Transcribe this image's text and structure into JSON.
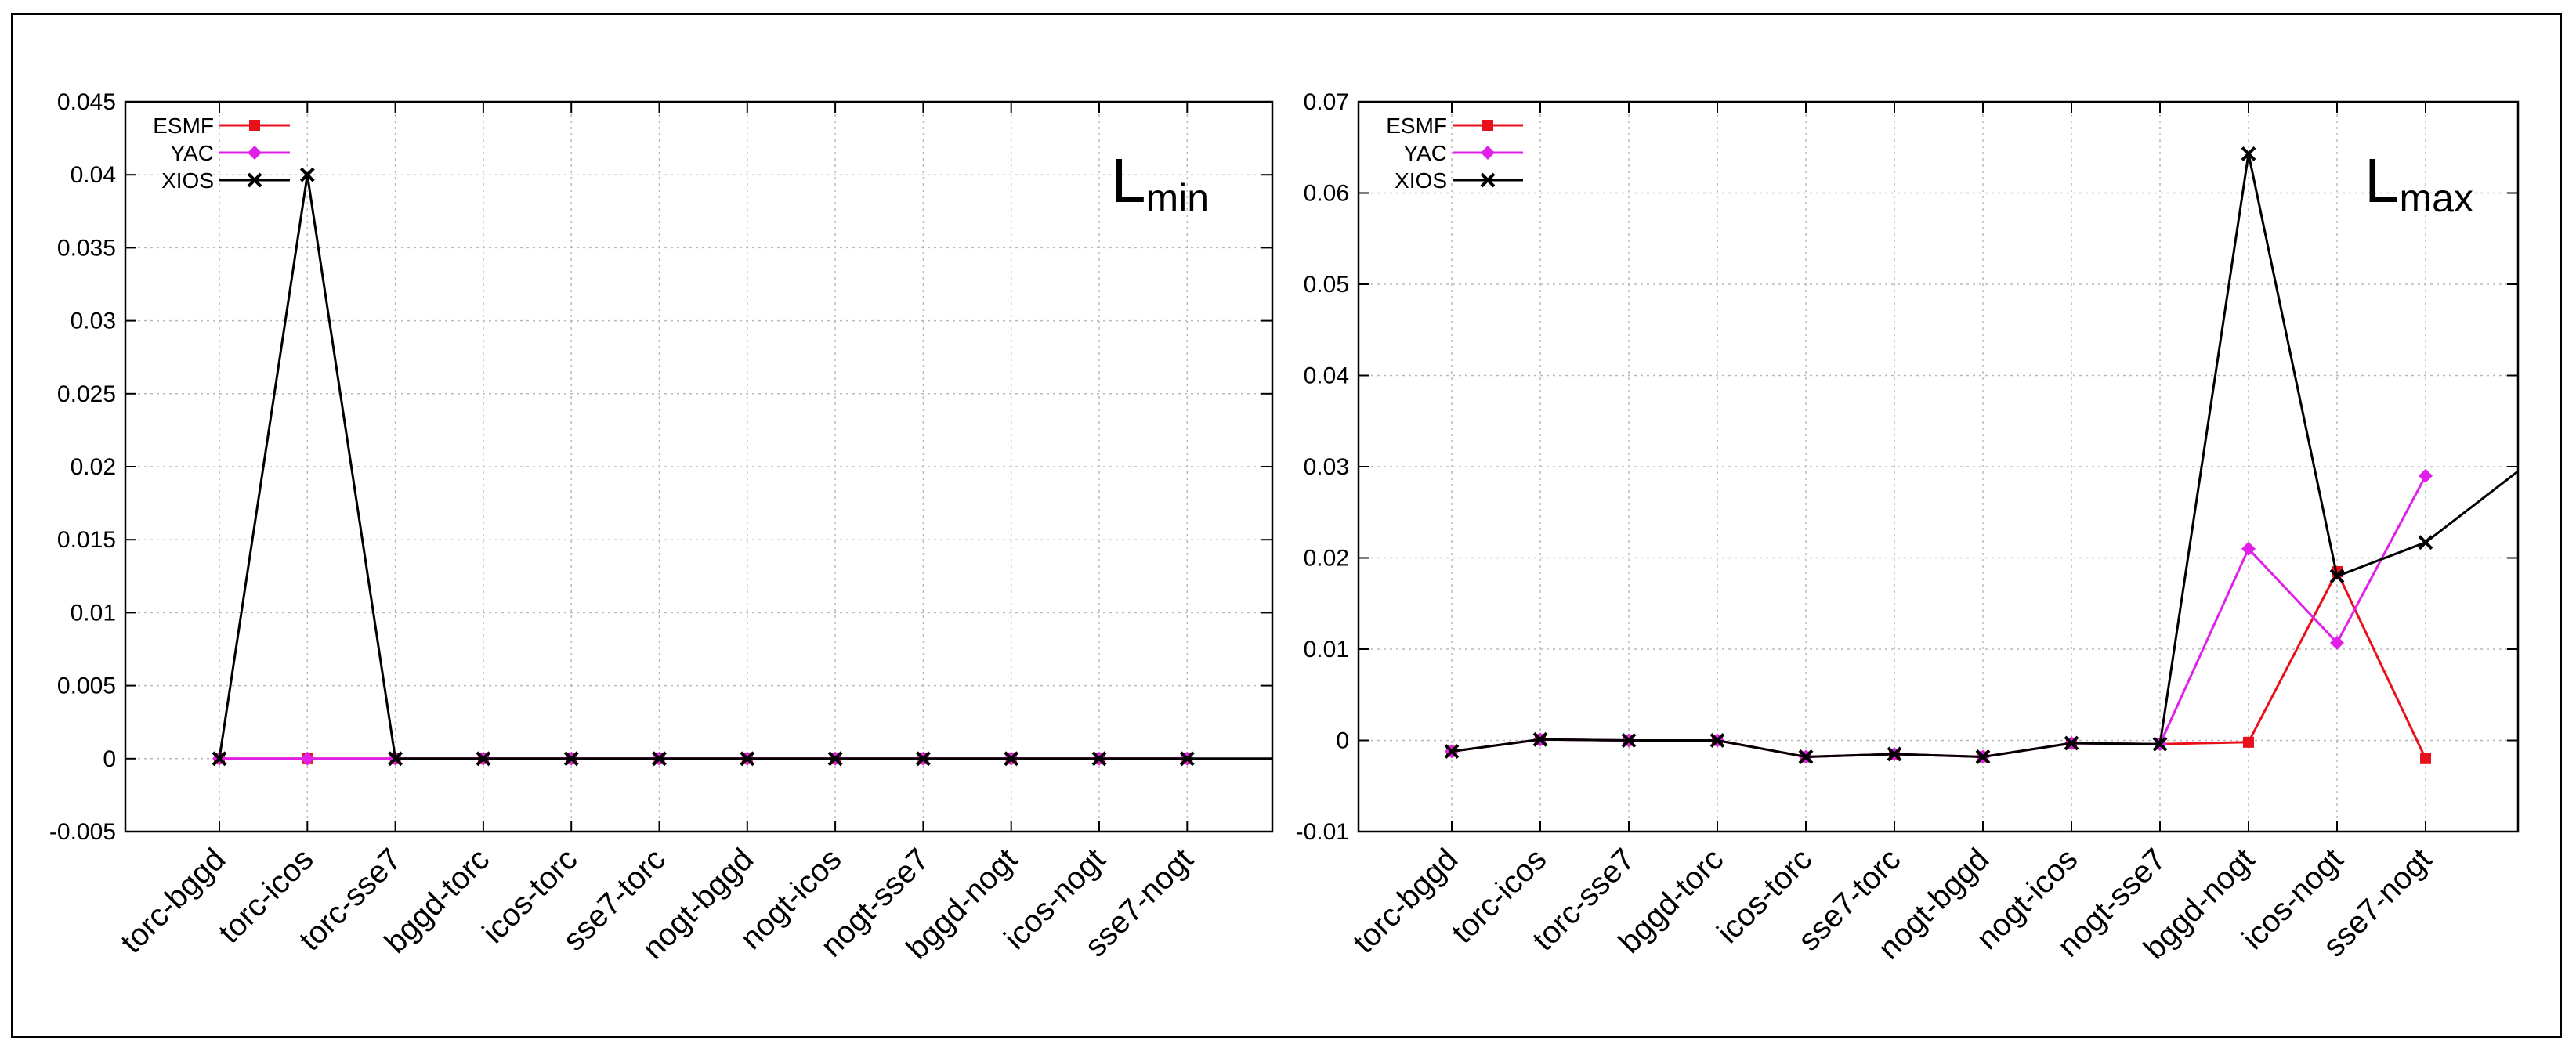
{
  "chart_data": [
    {
      "type": "line",
      "panel_label": {
        "main": "L",
        "sub": "min"
      },
      "categories": [
        "torc-bggd",
        "torc-icos",
        "torc-sse7",
        "bggd-torc",
        "icos-torc",
        "sse7-torc",
        "nogt-bggd",
        "nogt-icos",
        "nogt-sse7",
        "bggd-nogt",
        "icos-nogt",
        "sse7-nogt"
      ],
      "ylim": [
        -0.005,
        0.045
      ],
      "yticks": [
        "-0.005",
        "0",
        "0.005",
        "0.01",
        "0.015",
        "0.02",
        "0.025",
        "0.03",
        "0.035",
        "0.04",
        "0.045"
      ],
      "ytick_values": [
        -0.005,
        0,
        0.005,
        0.01,
        0.015,
        0.02,
        0.025,
        0.03,
        0.035,
        0.04,
        0.045
      ],
      "grid": true,
      "legend_position": "top-left",
      "series": [
        {
          "name": "ESMF",
          "color": "#e8101a",
          "marker": "square",
          "values": [
            0,
            0,
            0,
            0,
            0,
            0,
            0,
            0,
            0,
            0,
            0,
            0
          ]
        },
        {
          "name": "YAC",
          "color": "#e020e8",
          "marker": "diamond",
          "values": [
            0,
            0,
            0,
            0,
            0,
            0,
            0,
            0,
            0,
            0,
            0,
            0
          ]
        },
        {
          "name": "XIOS",
          "color": "#000000",
          "marker": "cross",
          "values": [
            0,
            0.04,
            0,
            0,
            0,
            0,
            0,
            0,
            0,
            0,
            0,
            0
          ],
          "extends_right": 0
        }
      ]
    },
    {
      "type": "line",
      "panel_label": {
        "main": "L",
        "sub": "max"
      },
      "categories": [
        "torc-bggd",
        "torc-icos",
        "torc-sse7",
        "bggd-torc",
        "icos-torc",
        "sse7-torc",
        "nogt-bggd",
        "nogt-icos",
        "nogt-sse7",
        "bggd-nogt",
        "icos-nogt",
        "sse7-nogt"
      ],
      "ylim": [
        -0.01,
        0.07
      ],
      "yticks": [
        "-0.01",
        "0",
        "0.01",
        "0.02",
        "0.03",
        "0.04",
        "0.05",
        "0.06",
        "0.07"
      ],
      "ytick_values": [
        -0.01,
        0,
        0.01,
        0.02,
        0.03,
        0.04,
        0.05,
        0.06,
        0.07
      ],
      "grid": true,
      "legend_position": "top-left",
      "series": [
        {
          "name": "ESMF",
          "color": "#e8101a",
          "marker": "square",
          "values": [
            -0.0012,
            0.0001,
            0,
            0,
            -0.0018,
            -0.0015,
            -0.0018,
            -0.0003,
            -0.0004,
            -0.0002,
            0.0185,
            -0.002
          ]
        },
        {
          "name": "YAC",
          "color": "#e020e8",
          "marker": "diamond",
          "values": [
            -0.0012,
            0.0001,
            0,
            0,
            -0.0018,
            -0.0015,
            -0.0018,
            -0.0003,
            -0.0004,
            0.021,
            0.0107,
            0.029
          ]
        },
        {
          "name": "XIOS",
          "color": "#000000",
          "marker": "cross",
          "values": [
            -0.0012,
            0.0001,
            0,
            0,
            -0.0018,
            -0.0015,
            -0.0018,
            -0.0003,
            -0.0004,
            0.0643,
            0.018,
            0.0217
          ],
          "extends_right": 0.0295
        }
      ]
    }
  ]
}
